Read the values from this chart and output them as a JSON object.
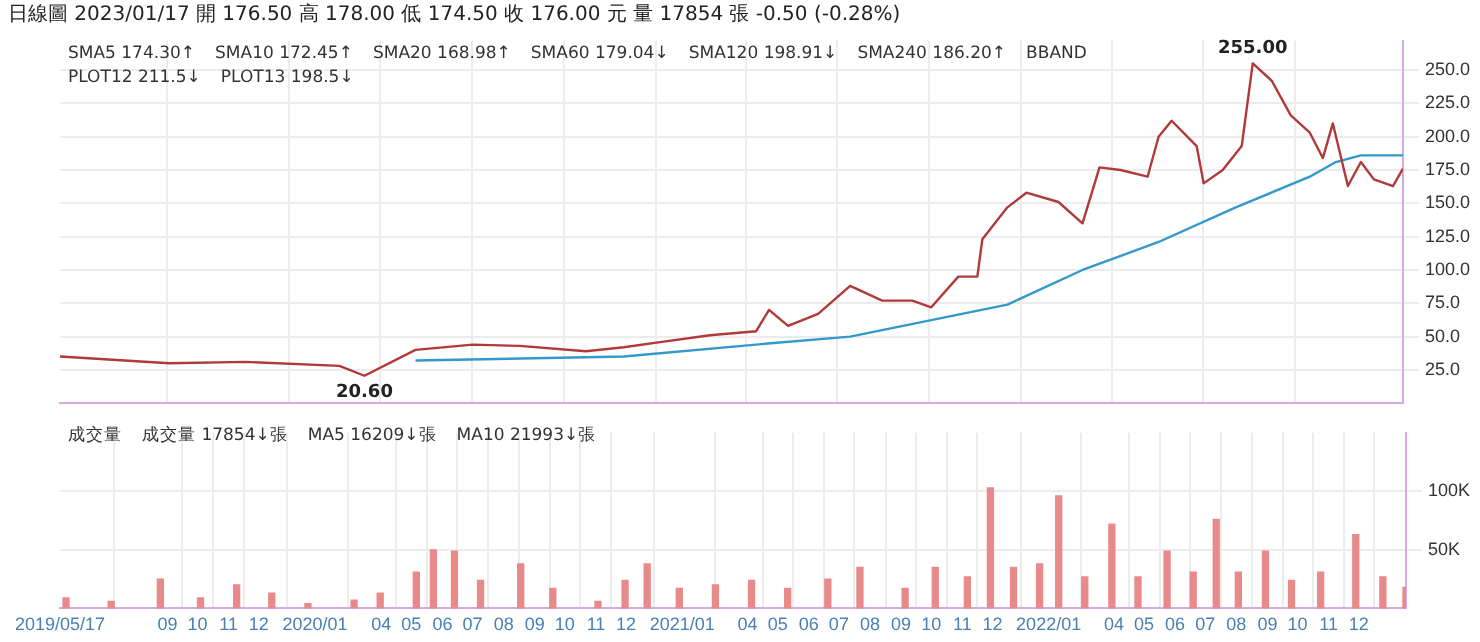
{
  "chart_data": [
    {
      "type": "line",
      "title": "日線圖 2023/01/17 開 176.50 高 178.00 低 174.50 收 176.00 元 量 17854 張 -0.50 (-0.28%)",
      "annotations": [
        "SMA5 174.30↑",
        "SMA10 172.45↑",
        "SMA20 168.98↑",
        "SMA60 179.04↓",
        "SMA120 198.91↓",
        "SMA240 186.20↑",
        "BBAND",
        "PLOT12 211.5↓",
        "PLOT13 198.5↓",
        {
          "text": "255.00",
          "x": "2022-08-20",
          "y": 255
        },
        {
          "text": "20.60",
          "x": "2020-03-16",
          "y": 20.6
        }
      ],
      "xlim": [
        "2019-05-17",
        "2023-01-17"
      ],
      "xticks": [
        {
          "value": "2019-09-01",
          "label": null
        },
        {
          "value": "2020-01-01",
          "label": null
        },
        {
          "value": "2020-04-01",
          "label": null
        },
        {
          "value": "2020-07-01",
          "label": null
        },
        {
          "value": "2020-10-01",
          "label": null
        },
        {
          "value": "2021-01-01",
          "label": null
        },
        {
          "value": "2021-04-01",
          "label": null
        },
        {
          "value": "2021-07-01",
          "label": null
        },
        {
          "value": "2021-10-01",
          "label": null
        },
        {
          "value": "2022-01-01",
          "label": null
        },
        {
          "value": "2022-04-01",
          "label": null
        },
        {
          "value": "2022-07-01",
          "label": null
        },
        {
          "value": "2022-10-01",
          "label": null
        }
      ],
      "ylim": [
        0,
        272
      ],
      "yticks": [
        {
          "value": 25,
          "label": "25.0"
        },
        {
          "value": 50,
          "label": "50.0"
        },
        {
          "value": 75,
          "label": "75.0"
        },
        {
          "value": 100,
          "label": "100.0"
        },
        {
          "value": 125,
          "label": "125.0"
        },
        {
          "value": 150,
          "label": "150.0"
        },
        {
          "value": 175,
          "label": "175.0"
        },
        {
          "value": 200,
          "label": "200.0"
        },
        {
          "value": 225,
          "label": "225.0"
        },
        {
          "value": 250,
          "label": "250.0"
        }
      ],
      "tick_labels": "y",
      "grid": true,
      "marker": "none",
      "series": [
        {
          "color": "#b03a3a",
          "x": [
            "2019-05-17",
            "2019-09-03",
            "2019-11-18",
            "2020-02-20",
            "2020-03-16",
            "2020-05-06",
            "2020-07-02",
            "2020-08-18",
            "2020-10-23",
            "2020-11-30",
            "2021-01-07",
            "2021-02-24",
            "2021-04-11",
            "2021-04-24",
            "2021-05-13",
            "2021-06-12",
            "2021-07-14",
            "2021-08-15",
            "2021-09-14",
            "2021-10-03",
            "2021-10-30",
            "2021-11-18",
            "2021-11-23",
            "2021-12-18",
            "2022-01-06",
            "2022-02-07",
            "2022-03-03",
            "2022-03-20",
            "2022-04-10",
            "2022-05-07",
            "2022-05-18",
            "2022-05-31",
            "2022-06-25",
            "2022-07-02",
            "2022-07-21",
            "2022-08-09",
            "2022-08-20",
            "2022-09-08",
            "2022-09-27",
            "2022-10-16",
            "2022-10-29",
            "2022-11-08",
            "2022-11-23",
            "2022-12-06",
            "2022-12-19",
            "2023-01-07",
            "2023-01-17"
          ],
          "values": [
            35,
            30,
            31,
            28,
            20.6,
            40,
            44,
            43,
            39,
            42,
            46,
            51,
            54,
            70,
            58,
            67,
            88,
            77,
            77,
            72,
            95,
            95,
            123,
            147,
            158,
            151,
            135,
            177,
            175,
            170,
            200,
            212,
            193,
            165,
            175,
            193,
            255,
            242,
            216,
            203,
            184,
            210,
            163,
            181,
            168,
            163,
            176
          ]
        },
        {
          "color": "#3399cc",
          "x": [
            "2020-05-06",
            "2020-11-30",
            "2021-04-11",
            "2021-07-14",
            "2021-12-18",
            "2022-03-03",
            "2022-05-18",
            "2022-08-03",
            "2022-10-16",
            "2022-11-11",
            "2022-12-06",
            "2023-01-17"
          ],
          "values": [
            32,
            35,
            44,
            50,
            74,
            100,
            121,
            147,
            170,
            181,
            186,
            186
          ]
        }
      ]
    },
    {
      "type": "bar",
      "annotations": [
        "成交量",
        "成交量 17854↓張",
        "MA5 16209↓張",
        "MA10 21993↓張"
      ],
      "xlim": [
        "2019-05-17",
        "2023-01-17"
      ],
      "xticks": [
        {
          "value": "2019-05-17",
          "label": "2019/05/17"
        },
        {
          "value": "2019-09-01",
          "label": "09"
        },
        {
          "value": "2019-10-01",
          "label": "10"
        },
        {
          "value": "2019-11-01",
          "label": "11"
        },
        {
          "value": "2019-12-01",
          "label": "12"
        },
        {
          "value": "2020-01-26",
          "label": "2020/01"
        },
        {
          "value": "2020-04-01",
          "label": "04"
        },
        {
          "value": "2020-05-01",
          "label": "05"
        },
        {
          "value": "2020-06-01",
          "label": "06"
        },
        {
          "value": "2020-07-01",
          "label": "07"
        },
        {
          "value": "2020-08-01",
          "label": "08"
        },
        {
          "value": "2020-09-01",
          "label": "09"
        },
        {
          "value": "2020-10-01",
          "label": "10"
        },
        {
          "value": "2020-11-01",
          "label": "11"
        },
        {
          "value": "2020-12-01",
          "label": "12"
        },
        {
          "value": "2021-01-26",
          "label": "2021/01"
        },
        {
          "value": "2021-04-01",
          "label": "04"
        },
        {
          "value": "2021-05-01",
          "label": "05"
        },
        {
          "value": "2021-06-01",
          "label": "06"
        },
        {
          "value": "2021-07-01",
          "label": "07"
        },
        {
          "value": "2021-08-01",
          "label": "08"
        },
        {
          "value": "2021-09-01",
          "label": "09"
        },
        {
          "value": "2021-10-01",
          "label": "10"
        },
        {
          "value": "2021-11-01",
          "label": "11"
        },
        {
          "value": "2021-12-01",
          "label": "12"
        },
        {
          "value": "2022-01-26",
          "label": "2022/01"
        },
        {
          "value": "2022-04-01",
          "label": "04"
        },
        {
          "value": "2022-05-01",
          "label": "05"
        },
        {
          "value": "2022-06-01",
          "label": "06"
        },
        {
          "value": "2022-07-01",
          "label": "07"
        },
        {
          "value": "2022-08-01",
          "label": "08"
        },
        {
          "value": "2022-09-01",
          "label": "09"
        },
        {
          "value": "2022-10-01",
          "label": "10"
        },
        {
          "value": "2022-11-01",
          "label": "11"
        },
        {
          "value": "2022-12-01",
          "label": "12"
        }
      ],
      "ylim": [
        0,
        150000
      ],
      "yticks": [
        {
          "value": 50000,
          "label": "50K"
        },
        {
          "value": 100000,
          "label": "100K"
        }
      ],
      "grid": true,
      "x": [
        "2019-05-23",
        "2019-07-07",
        "2019-08-25",
        "2019-10-04",
        "2019-11-09",
        "2019-12-14",
        "2020-01-19",
        "2020-03-05",
        "2020-03-31",
        "2020-05-06",
        "2020-05-23",
        "2020-06-13",
        "2020-07-09",
        "2020-08-18",
        "2020-09-19",
        "2020-11-03",
        "2020-11-30",
        "2020-12-22",
        "2021-01-23",
        "2021-02-28",
        "2021-04-05",
        "2021-05-11",
        "2021-06-20",
        "2021-07-22",
        "2021-09-05",
        "2021-10-05",
        "2021-11-06",
        "2021-11-29",
        "2021-12-22",
        "2022-01-17",
        "2022-02-05",
        "2022-03-03",
        "2022-03-30",
        "2022-04-25",
        "2022-05-24",
        "2022-06-19",
        "2022-07-12",
        "2022-08-03",
        "2022-08-30",
        "2022-09-25",
        "2022-10-24",
        "2022-11-28",
        "2022-12-25",
        "2023-01-17"
      ],
      "series": [
        {
          "color": "#e88a8a",
          "values": [
            9000,
            6000,
            25000,
            9000,
            20000,
            13000,
            4000,
            7000,
            13000,
            31000,
            50000,
            49000,
            24000,
            38000,
            17000,
            6000,
            24000,
            38000,
            17000,
            20000,
            24000,
            17000,
            25000,
            35000,
            17000,
            35000,
            27000,
            103000,
            35000,
            38000,
            96000,
            27000,
            72000,
            27000,
            49000,
            31000,
            76000,
            31000,
            49000,
            24000,
            31000,
            63000,
            27000,
            18000
          ]
        }
      ]
    }
  ]
}
